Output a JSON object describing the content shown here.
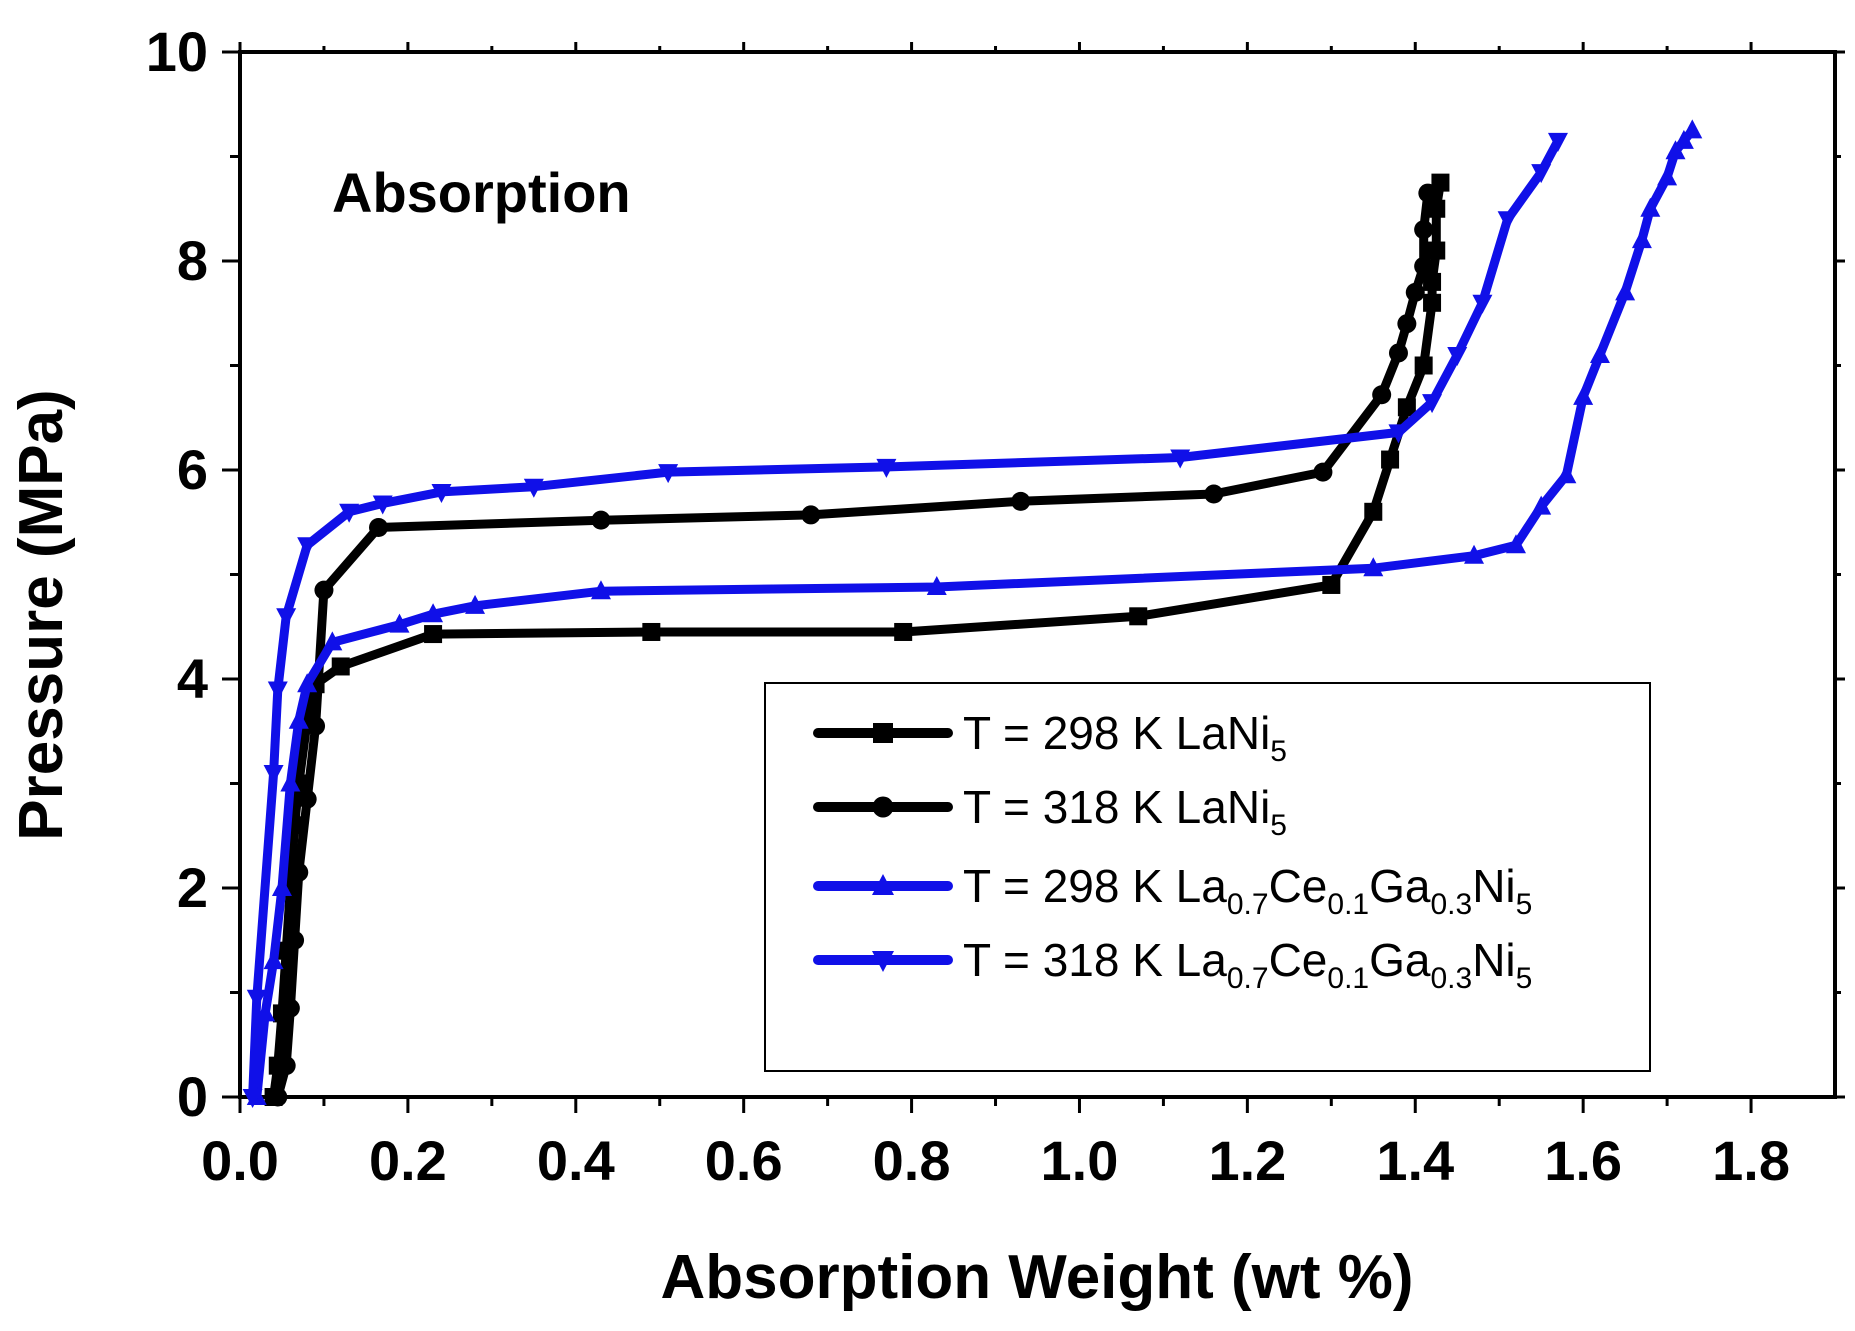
{
  "chart_data": {
    "type": "line",
    "title": "",
    "annotation": "Absorption",
    "xlabel": "Absorption Weight (wt %)",
    "ylabel": "Pressure (MPa)",
    "xlim": [
      0.0,
      1.9
    ],
    "ylim": [
      0,
      10
    ],
    "xticks": [
      "0.0",
      "0.2",
      "0.4",
      "0.6",
      "0.8",
      "1.0",
      "1.2",
      "1.4",
      "1.6",
      "1.8"
    ],
    "xtick_values": [
      0.0,
      0.2,
      0.4,
      0.6,
      0.8,
      1.0,
      1.2,
      1.4,
      1.6,
      1.8
    ],
    "yticks": [
      "0",
      "2",
      "4",
      "6",
      "8",
      "10"
    ],
    "ytick_values": [
      0,
      2,
      4,
      6,
      8,
      10
    ],
    "grid": false,
    "legend_position": "bottom-right",
    "series": [
      {
        "name": "T = 298 K LaNi5",
        "label_parts": [
          {
            "t": "T = 298 K LaNi"
          },
          {
            "t": "5",
            "sub": true
          }
        ],
        "color": "#000000",
        "marker": "square",
        "points": [
          [
            0.04,
            0.0
          ],
          [
            0.045,
            0.3
          ],
          [
            0.05,
            0.8
          ],
          [
            0.055,
            1.4
          ],
          [
            0.06,
            2.0
          ],
          [
            0.065,
            2.6
          ],
          [
            0.07,
            3.0
          ],
          [
            0.08,
            3.6
          ],
          [
            0.09,
            3.95
          ],
          [
            0.12,
            4.12
          ],
          [
            0.23,
            4.43
          ],
          [
            0.49,
            4.45
          ],
          [
            0.79,
            4.45
          ],
          [
            1.07,
            4.6
          ],
          [
            1.3,
            4.9
          ],
          [
            1.35,
            5.6
          ],
          [
            1.37,
            6.1
          ],
          [
            1.39,
            6.6
          ],
          [
            1.41,
            7.0
          ],
          [
            1.42,
            7.6
          ],
          [
            1.42,
            7.8
          ],
          [
            1.425,
            8.1
          ],
          [
            1.425,
            8.5
          ],
          [
            1.43,
            8.75
          ]
        ]
      },
      {
        "name": "T = 318 K LaNi5",
        "label_parts": [
          {
            "t": "T = 318 K LaNi"
          },
          {
            "t": "5",
            "sub": true
          }
        ],
        "color": "#000000",
        "marker": "circle",
        "points": [
          [
            0.045,
            0.0
          ],
          [
            0.055,
            0.3
          ],
          [
            0.06,
            0.85
          ],
          [
            0.065,
            1.5
          ],
          [
            0.07,
            2.15
          ],
          [
            0.08,
            2.85
          ],
          [
            0.09,
            3.55
          ],
          [
            0.1,
            4.85
          ],
          [
            0.165,
            5.45
          ],
          [
            0.43,
            5.52
          ],
          [
            0.68,
            5.57
          ],
          [
            0.93,
            5.7
          ],
          [
            1.16,
            5.77
          ],
          [
            1.29,
            5.98
          ],
          [
            1.36,
            6.72
          ],
          [
            1.38,
            7.12
          ],
          [
            1.39,
            7.4
          ],
          [
            1.4,
            7.7
          ],
          [
            1.41,
            7.95
          ],
          [
            1.41,
            8.3
          ],
          [
            1.415,
            8.65
          ]
        ]
      },
      {
        "name": "T = 298 K La0.7Ce0.1Ga0.3Ni5",
        "label_parts": [
          {
            "t": "T = 298 K La"
          },
          {
            "t": "0.7",
            "sub": true
          },
          {
            "t": "Ce"
          },
          {
            "t": "0.1",
            "sub": true
          },
          {
            "t": "Ga"
          },
          {
            "t": "0.3",
            "sub": true
          },
          {
            "t": "Ni"
          },
          {
            "t": "5",
            "sub": true
          }
        ],
        "color": "#1010e8",
        "marker": "triangle-up",
        "points": [
          [
            0.02,
            0.0
          ],
          [
            0.03,
            0.8
          ],
          [
            0.04,
            1.3
          ],
          [
            0.05,
            2.0
          ],
          [
            0.06,
            3.0
          ],
          [
            0.07,
            3.6
          ],
          [
            0.08,
            3.95
          ],
          [
            0.11,
            4.35
          ],
          [
            0.19,
            4.52
          ],
          [
            0.23,
            4.62
          ],
          [
            0.28,
            4.7
          ],
          [
            0.43,
            4.84
          ],
          [
            0.83,
            4.88
          ],
          [
            1.35,
            5.06
          ],
          [
            1.47,
            5.18
          ],
          [
            1.52,
            5.28
          ],
          [
            1.55,
            5.65
          ],
          [
            1.58,
            5.95
          ],
          [
            1.6,
            6.7
          ],
          [
            1.62,
            7.1
          ],
          [
            1.65,
            7.7
          ],
          [
            1.67,
            8.2
          ],
          [
            1.68,
            8.5
          ],
          [
            1.7,
            8.8
          ],
          [
            1.71,
            9.05
          ],
          [
            1.72,
            9.15
          ],
          [
            1.73,
            9.25
          ]
        ]
      },
      {
        "name": "T = 318 K La0.7Ce0.1Ga0.3Ni5",
        "label_parts": [
          {
            "t": "T = 318 K La"
          },
          {
            "t": "0.7",
            "sub": true
          },
          {
            "t": "Ce"
          },
          {
            "t": "0.1",
            "sub": true
          },
          {
            "t": "Ga"
          },
          {
            "t": "0.3",
            "sub": true
          },
          {
            "t": "Ni"
          },
          {
            "t": "5",
            "sub": true
          }
        ],
        "color": "#1010e8",
        "marker": "triangle-down",
        "points": [
          [
            0.015,
            0.0
          ],
          [
            0.02,
            0.95
          ],
          [
            0.04,
            3.1
          ],
          [
            0.045,
            3.9
          ],
          [
            0.055,
            4.6
          ],
          [
            0.08,
            5.28
          ],
          [
            0.13,
            5.6
          ],
          [
            0.17,
            5.68
          ],
          [
            0.24,
            5.79
          ],
          [
            0.35,
            5.84
          ],
          [
            0.51,
            5.98
          ],
          [
            0.77,
            6.03
          ],
          [
            1.12,
            6.12
          ],
          [
            1.38,
            6.36
          ],
          [
            1.42,
            6.65
          ],
          [
            1.45,
            7.1
          ],
          [
            1.48,
            7.6
          ],
          [
            1.51,
            8.4
          ],
          [
            1.55,
            8.85
          ],
          [
            1.57,
            9.15
          ]
        ]
      }
    ]
  }
}
